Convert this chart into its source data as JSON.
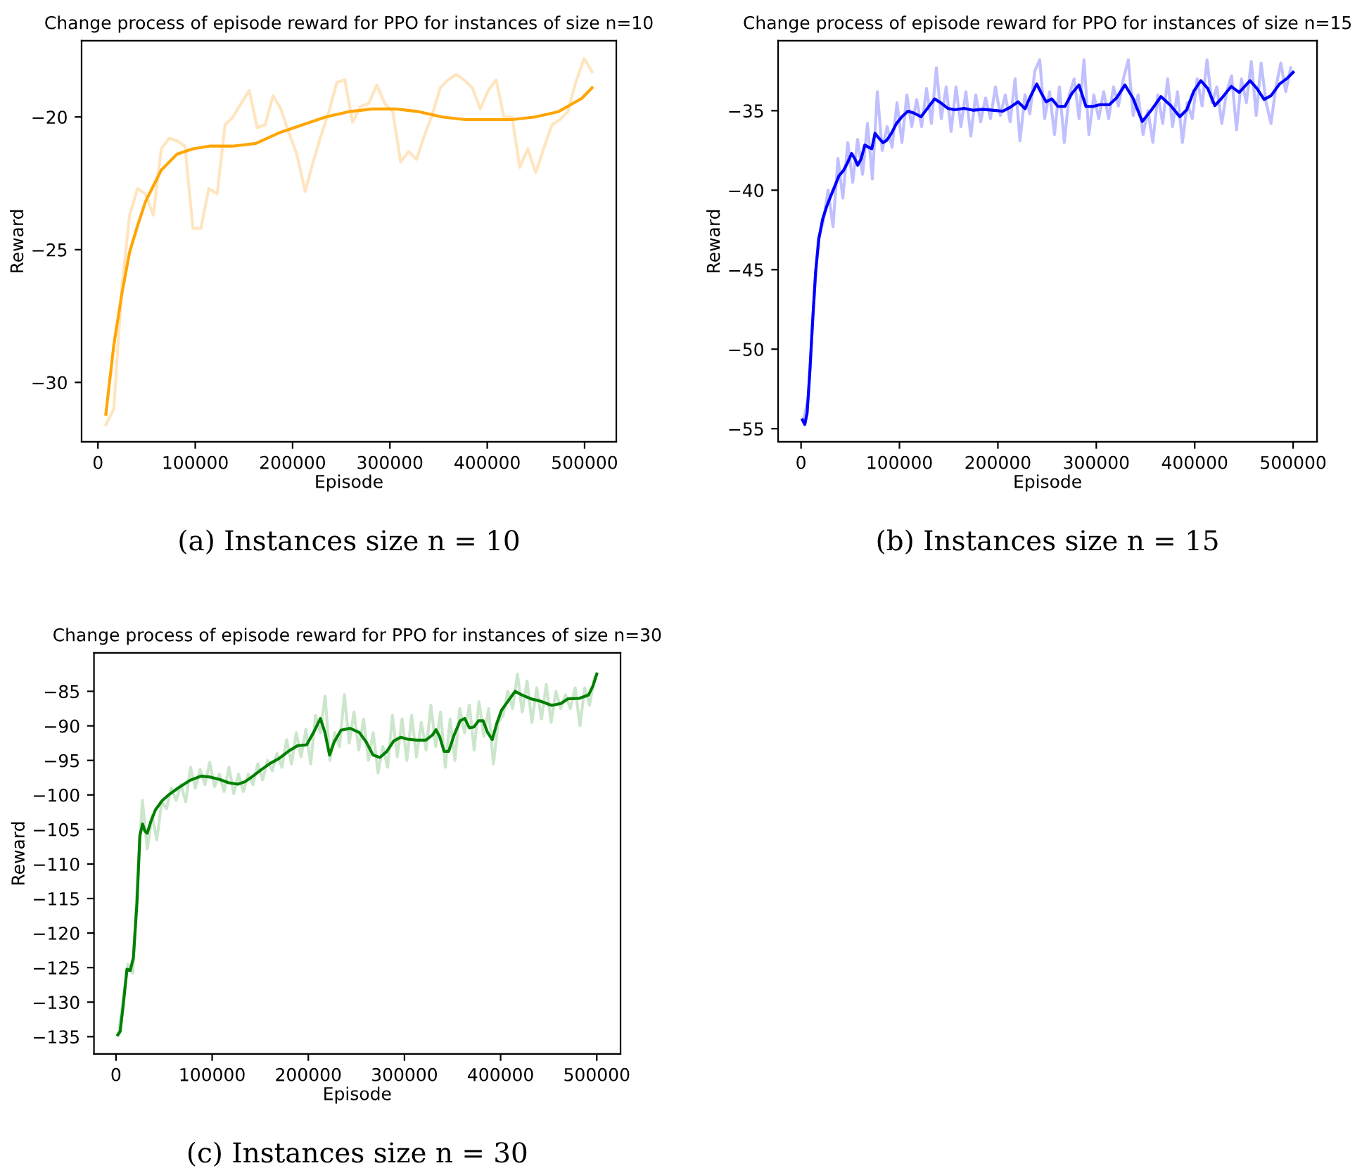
{
  "chart_data": [
    {
      "type": "line",
      "title": "Change process of episode reward for PPO for instances of size n=10",
      "xlabel": "Episode",
      "ylabel": "Reward",
      "xlim": [
        -16800,
        532600
      ],
      "ylim": [
        -32.24,
        -17.13
      ],
      "xticks": [
        0,
        100000,
        200000,
        300000,
        400000,
        500000
      ],
      "yticks": [
        {
          "value": -30,
          "label": "−30"
        },
        {
          "value": -25,
          "label": "−25"
        },
        {
          "value": -20,
          "label": "−20"
        }
      ],
      "grid": false,
      "annotations": [
        "(a) Instances size n = 10"
      ],
      "series": [
        {
          "color": "#ffe5bf",
          "x": [
            8100,
            16300,
            24400,
            32500,
            40700,
            48800,
            56900,
            65100,
            73200,
            81300,
            89500,
            97600,
            105700,
            113900,
            122500,
            130600,
            138800,
            146900,
            155500,
            163600,
            171800,
            179900,
            188000,
            196200,
            204300,
            212900,
            221100,
            229200,
            237300,
            245500,
            253600,
            261700,
            269900,
            278000,
            286600,
            294700,
            302900,
            311000,
            319200,
            327300,
            335400,
            343600,
            351700,
            359800,
            368000,
            376100,
            384700,
            392800,
            401000,
            409100,
            417200,
            425400,
            433500,
            441600,
            449800,
            457900,
            466500,
            474700,
            482800,
            490900,
            499500,
            507700
          ],
          "values": [
            -31.6,
            -31.0,
            -26.5,
            -23.7,
            -22.7,
            -22.9,
            -23.7,
            -21.2,
            -20.8,
            -20.9,
            -21.1,
            -24.2,
            -24.2,
            -22.7,
            -22.9,
            -20.3,
            -20.0,
            -19.5,
            -19.0,
            -20.4,
            -20.3,
            -19.2,
            -19.7,
            -20.6,
            -21.4,
            -22.8,
            -21.7,
            -20.7,
            -19.8,
            -18.7,
            -18.6,
            -20.2,
            -19.6,
            -19.5,
            -18.8,
            -19.5,
            -19.8,
            -21.7,
            -21.3,
            -21.6,
            -20.7,
            -19.9,
            -18.9,
            -18.6,
            -18.4,
            -18.6,
            -18.9,
            -19.7,
            -19.0,
            -18.6,
            -20.0,
            -20.0,
            -21.9,
            -21.2,
            -22.1,
            -21.2,
            -20.3,
            -20.1,
            -19.8,
            -18.7,
            -17.8,
            -18.3
          ]
        },
        {
          "color": "#ffa500",
          "x": [
            8100,
            16300,
            24400,
            32500,
            40700,
            48800,
            56900,
            65100,
            73200,
            81300,
            89500,
            97600,
            114400,
            138300,
            162200,
            186100,
            210100,
            234000,
            257900,
            281800,
            305800,
            329700,
            353600,
            377500,
            401500,
            425400,
            449300,
            473200,
            497200,
            507700
          ],
          "values": [
            -31.2,
            -28.6,
            -26.7,
            -25.1,
            -24.1,
            -23.2,
            -22.6,
            -22.0,
            -21.7,
            -21.4,
            -21.3,
            -21.2,
            -21.1,
            -21.1,
            -21.0,
            -20.6,
            -20.3,
            -20.0,
            -19.8,
            -19.7,
            -19.7,
            -19.8,
            -20.0,
            -20.1,
            -20.1,
            -20.1,
            -20.0,
            -19.8,
            -19.3,
            -18.9
          ]
        }
      ]
    },
    {
      "type": "line",
      "title": "Change process of episode reward for PPO for instances of size n=15",
      "xlabel": "Episode",
      "ylabel": "Reward",
      "xlim": [
        -23300,
        524300
      ],
      "ylim": [
        -55.83,
        -30.6
      ],
      "xticks": [
        0,
        100000,
        200000,
        300000,
        400000,
        500000
      ],
      "yticks": [
        {
          "value": -55,
          "label": "−55"
        },
        {
          "value": -50,
          "label": "−50"
        },
        {
          "value": -45,
          "label": "−45"
        },
        {
          "value": -40,
          "label": "−40"
        },
        {
          "value": -35,
          "label": "−35"
        }
      ],
      "grid": false,
      "annotations": [
        "(b) Instances size n = 15"
      ],
      "series": [
        {
          "color": "#c0c0ff",
          "x": [
            2500,
            7500,
            12500,
            17500,
            22500,
            27500,
            32500,
            37500,
            42500,
            47500,
            52500,
            57500,
            62500,
            67500,
            72500,
            77500,
            82500,
            87500,
            92500,
            97500,
            102500,
            107500,
            112500,
            117500,
            122500,
            127500,
            132500,
            137500,
            142500,
            147500,
            152500,
            157500,
            162500,
            167500,
            172500,
            177500,
            182500,
            187500,
            192500,
            197500,
            202500,
            207500,
            212500,
            217500,
            222500,
            227500,
            232500,
            237500,
            242500,
            247500,
            252500,
            257500,
            262500,
            267500,
            272500,
            277500,
            282500,
            287500,
            292500,
            297500,
            302500,
            307500,
            312500,
            317500,
            322500,
            327500,
            332500,
            337500,
            342500,
            347500,
            352500,
            357500,
            362500,
            367500,
            372500,
            377500,
            382500,
            387500,
            392500,
            397500,
            402500,
            407500,
            412500,
            417500,
            422500,
            427500,
            432500,
            437500,
            442500,
            447500,
            452500,
            457500,
            462500,
            467500,
            472500,
            477500,
            482500,
            487500,
            492500,
            497500
          ],
          "values": [
            -54.5,
            -53.0,
            -47.5,
            -43.0,
            -42.0,
            -40.0,
            -42.3,
            -38.0,
            -40.5,
            -37.0,
            -39.5,
            -36.8,
            -39.0,
            -35.8,
            -39.3,
            -33.8,
            -37.5,
            -36.0,
            -37.3,
            -34.5,
            -37.0,
            -34.0,
            -36.0,
            -34.3,
            -36.0,
            -33.6,
            -35.8,
            -32.3,
            -35.5,
            -33.5,
            -36.3,
            -33.5,
            -36.0,
            -33.8,
            -36.6,
            -34.0,
            -35.7,
            -34.2,
            -35.5,
            -33.5,
            -35.3,
            -34.0,
            -35.7,
            -33.0,
            -36.9,
            -34.0,
            -35.2,
            -32.5,
            -31.8,
            -35.5,
            -33.8,
            -36.5,
            -33.5,
            -37.0,
            -34.0,
            -33.0,
            -35.5,
            -31.8,
            -36.5,
            -34.0,
            -35.5,
            -33.8,
            -35.5,
            -33.5,
            -34.7,
            -33.0,
            -31.8,
            -35.3,
            -34.0,
            -36.5,
            -35.0,
            -37.0,
            -34.0,
            -35.8,
            -33.0,
            -36.0,
            -33.8,
            -37.0,
            -34.5,
            -35.5,
            -33.0,
            -34.7,
            -31.8,
            -34.5,
            -33.5,
            -35.8,
            -33.8,
            -32.8,
            -36.2,
            -33.0,
            -34.5,
            -31.9,
            -35.3,
            -32.0,
            -34.5,
            -35.8,
            -33.5,
            -32.0,
            -33.8,
            -32.3
          ]
        },
        {
          "color": "#0000ff",
          "x": [
            1400,
            3800,
            6200,
            9000,
            11900,
            14800,
            18100,
            21900,
            26200,
            30000,
            34800,
            38600,
            42900,
            46700,
            51400,
            54800,
            57600,
            61000,
            64800,
            68600,
            71900,
            75200,
            79000,
            83300,
            87100,
            91900,
            96700,
            102400,
            108600,
            114800,
            121900,
            129100,
            135700,
            141900,
            149100,
            156200,
            165700,
            175200,
            184800,
            194300,
            204800,
            212400,
            220500,
            227600,
            232400,
            239500,
            244300,
            249100,
            254800,
            261000,
            268100,
            275200,
            282400,
            289500,
            296700,
            303800,
            313300,
            320500,
            329100,
            337200,
            346700,
            356200,
            365700,
            375200,
            384800,
            391900,
            399100,
            406200,
            413300,
            420500,
            427600,
            437200,
            445200,
            456200,
            463300,
            470500,
            477600,
            486200,
            494300,
            500000
          ],
          "values": [
            -54.44,
            -54.74,
            -54.0,
            -51.34,
            -48.09,
            -45.14,
            -43.07,
            -41.83,
            -41.0,
            -40.4,
            -39.67,
            -39.08,
            -38.78,
            -38.34,
            -37.69,
            -38.04,
            -38.43,
            -38.04,
            -37.16,
            -37.3,
            -37.39,
            -36.42,
            -36.72,
            -37.01,
            -36.86,
            -36.42,
            -35.83,
            -35.38,
            -35.03,
            -35.15,
            -35.38,
            -34.8,
            -34.26,
            -34.5,
            -34.85,
            -34.94,
            -34.85,
            -34.97,
            -34.91,
            -34.97,
            -35.03,
            -34.79,
            -34.44,
            -34.88,
            -34.2,
            -33.32,
            -33.91,
            -34.44,
            -34.26,
            -34.73,
            -34.73,
            -33.91,
            -33.38,
            -34.73,
            -34.73,
            -34.62,
            -34.62,
            -34.2,
            -33.38,
            -34.2,
            -35.68,
            -34.94,
            -34.11,
            -34.65,
            -35.38,
            -34.94,
            -33.76,
            -33.11,
            -33.61,
            -34.68,
            -34.2,
            -33.47,
            -33.85,
            -33.11,
            -33.61,
            -34.29,
            -34.05,
            -33.32,
            -32.94,
            -32.58
          ]
        }
      ]
    },
    {
      "type": "line",
      "title": "Change process of episode reward for PPO for instances of size n=30",
      "xlabel": "Episode",
      "ylabel": "Reward",
      "xlim": [
        -22900,
        524700
      ],
      "ylim": [
        -137.51,
        -79.44
      ],
      "xticks": [
        0,
        100000,
        200000,
        300000,
        400000,
        500000
      ],
      "yticks": [
        {
          "value": -135,
          "label": "−135"
        },
        {
          "value": -130,
          "label": "−130"
        },
        {
          "value": -125,
          "label": "−125"
        },
        {
          "value": -120,
          "label": "−120"
        },
        {
          "value": -115,
          "label": "−115"
        },
        {
          "value": -110,
          "label": "−110"
        },
        {
          "value": -105,
          "label": "−105"
        },
        {
          "value": -100,
          "label": "−100"
        },
        {
          "value": -95,
          "label": "−95"
        },
        {
          "value": -90,
          "label": "−90"
        },
        {
          "value": -85,
          "label": "−85"
        }
      ],
      "grid": false,
      "annotations": [
        "(c) Instances size n = 30"
      ],
      "series": [
        {
          "color": "#cce6cc",
          "x": [
            2500,
            7500,
            12500,
            17500,
            22500,
            27500,
            32500,
            37500,
            42500,
            47500,
            52500,
            57500,
            62500,
            67500,
            72500,
            77500,
            82500,
            87500,
            92500,
            97500,
            102500,
            107500,
            112500,
            117500,
            122500,
            127500,
            132500,
            137500,
            142500,
            147500,
            152500,
            157500,
            162500,
            167500,
            172500,
            177500,
            182500,
            187500,
            192500,
            197500,
            202500,
            207500,
            212500,
            217500,
            222500,
            227500,
            232500,
            237500,
            242500,
            247500,
            252500,
            257500,
            262500,
            267500,
            272500,
            277500,
            282500,
            287500,
            292500,
            297500,
            302500,
            307500,
            312500,
            317500,
            322500,
            327500,
            332500,
            337500,
            342500,
            347500,
            352500,
            357500,
            362500,
            367500,
            372500,
            377500,
            382500,
            387500,
            392500,
            397500,
            402500,
            407500,
            412500,
            417500,
            422500,
            427500,
            432500,
            437500,
            442500,
            447500,
            452500,
            457500,
            462500,
            467500,
            472500,
            477500,
            482500,
            487500,
            492500,
            497500
          ],
          "values": [
            -134.8,
            -129.5,
            -124.5,
            -125.8,
            -112.0,
            -100.8,
            -107.8,
            -103.0,
            -106.5,
            -101.0,
            -102.0,
            -99.0,
            -100.8,
            -98.5,
            -101.0,
            -96.0,
            -99.0,
            -96.3,
            -98.5,
            -95.3,
            -98.8,
            -97.0,
            -99.5,
            -96.0,
            -99.8,
            -97.0,
            -99.5,
            -97.0,
            -98.5,
            -95.5,
            -97.8,
            -95.0,
            -96.5,
            -94.0,
            -96.0,
            -92.0,
            -95.5,
            -91.0,
            -94.5,
            -90.5,
            -95.5,
            -88.5,
            -91.0,
            -85.7,
            -95.0,
            -91.0,
            -93.0,
            -85.5,
            -92.5,
            -88.0,
            -93.5,
            -89.0,
            -95.0,
            -91.0,
            -96.8,
            -93.0,
            -96.0,
            -88.5,
            -94.5,
            -89.0,
            -95.0,
            -88.5,
            -94.5,
            -89.5,
            -93.5,
            -87.0,
            -93.0,
            -88.0,
            -96.0,
            -89.0,
            -95.0,
            -87.5,
            -91.0,
            -87.0,
            -93.5,
            -86.5,
            -91.5,
            -87.5,
            -95.5,
            -89.5,
            -88.5,
            -85.0,
            -87.5,
            -82.5,
            -88.0,
            -83.5,
            -89.5,
            -84.5,
            -89.0,
            -84.0,
            -89.5,
            -85.0,
            -87.5,
            -85.5,
            -87.5,
            -84.5,
            -90.0,
            -84.5,
            -87.0,
            -83.0
          ]
        },
        {
          "color": "#008000",
          "x": [
            1900,
            4300,
            7600,
            11400,
            14800,
            18100,
            21900,
            24800,
            27600,
            30000,
            32400,
            36200,
            41000,
            48100,
            55300,
            64800,
            76700,
            88600,
            98200,
            107700,
            117200,
            126800,
            133900,
            141100,
            150600,
            160100,
            169700,
            179200,
            188700,
            198300,
            205400,
            212600,
            217300,
            222100,
            226900,
            234000,
            243500,
            253100,
            260200,
            267400,
            274500,
            281700,
            288800,
            296000,
            303100,
            312700,
            322200,
            329300,
            332700,
            336500,
            341200,
            346000,
            351700,
            357900,
            362700,
            367500,
            372200,
            377000,
            381800,
            386500,
            391300,
            396100,
            400800,
            408000,
            415100,
            422300,
            431800,
            441300,
            453200,
            462800,
            469900,
            481800,
            491400,
            496100,
            500000
          ],
          "values": [
            -134.73,
            -134.25,
            -130.32,
            -125.24,
            -125.44,
            -123.54,
            -115.4,
            -105.9,
            -104.2,
            -105.22,
            -105.56,
            -103.87,
            -102.17,
            -100.81,
            -99.93,
            -98.98,
            -97.9,
            -97.28,
            -97.42,
            -97.76,
            -98.24,
            -98.44,
            -98.1,
            -97.42,
            -96.4,
            -95.45,
            -94.71,
            -93.69,
            -92.88,
            -92.74,
            -90.97,
            -88.93,
            -90.97,
            -94.23,
            -92.33,
            -90.63,
            -90.36,
            -90.97,
            -92.33,
            -94.23,
            -94.57,
            -93.69,
            -92.19,
            -91.65,
            -91.92,
            -92.06,
            -92.06,
            -91.31,
            -90.56,
            -91.51,
            -93.69,
            -93.69,
            -91.31,
            -89.27,
            -88.93,
            -90.29,
            -90.16,
            -89.27,
            -89.27,
            -90.97,
            -91.99,
            -89.61,
            -87.78,
            -86.36,
            -85.0,
            -85.54,
            -86.09,
            -86.43,
            -87.04,
            -86.76,
            -86.09,
            -86.02,
            -85.54,
            -84.19,
            -82.49
          ]
        }
      ]
    }
  ]
}
